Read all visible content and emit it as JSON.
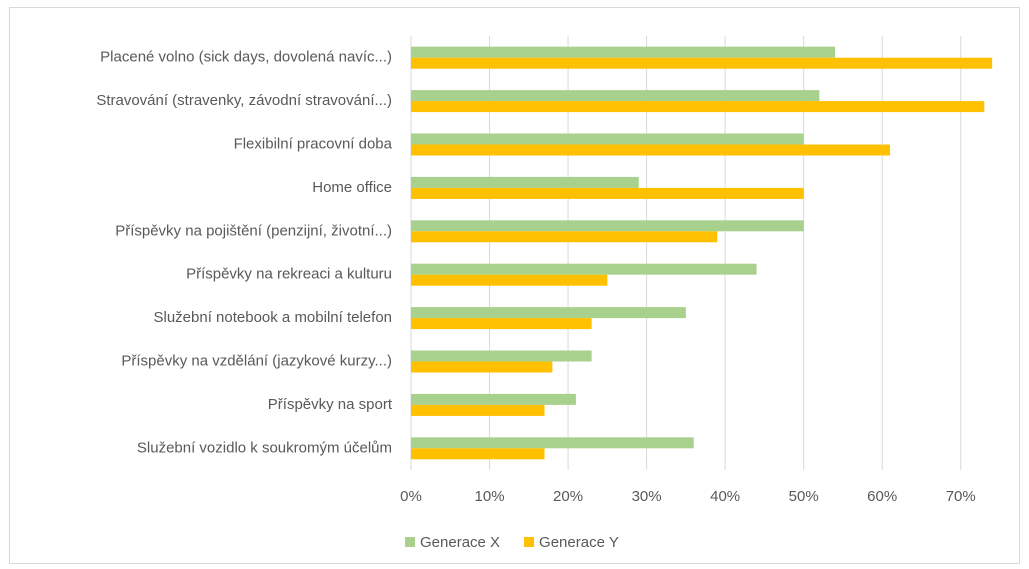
{
  "chart_data": {
    "type": "hbar",
    "categories": [
      "Placené volno (sick days, dovolená navíc...)",
      "Stravování (stravenky, závodní stravování...)",
      "Flexibilní pracovní doba",
      "Home office",
      "Příspěvky na pojištění (penzijní, životní...)",
      "Příspěvky na rekreaci a kulturu",
      "Služební notebook a mobilní telefon",
      "Příspěvky na vzdělání (jazykové kurzy...)",
      "Příspěvky na sport",
      "Služební vozidlo k soukromým účelům"
    ],
    "series": [
      {
        "name": "Generace X",
        "color": "#a9d18e",
        "values": [
          54,
          52,
          50,
          29,
          50,
          44,
          35,
          23,
          21,
          36
        ]
      },
      {
        "name": "Generace Y",
        "color": "#ffc000",
        "values": [
          74,
          73,
          61,
          50,
          39,
          25,
          23,
          18,
          17,
          17
        ]
      }
    ],
    "xlim": [
      0,
      75
    ],
    "xticks": [
      {
        "value": 0,
        "label": "0%"
      },
      {
        "value": 10,
        "label": "10%"
      },
      {
        "value": 20,
        "label": "20%"
      },
      {
        "value": 30,
        "label": "30%"
      },
      {
        "value": 40,
        "label": "40%"
      },
      {
        "value": 50,
        "label": "50%"
      },
      {
        "value": 60,
        "label": "60%"
      },
      {
        "value": 70,
        "label": "70%"
      }
    ],
    "grid": true,
    "legend": "bottom"
  }
}
